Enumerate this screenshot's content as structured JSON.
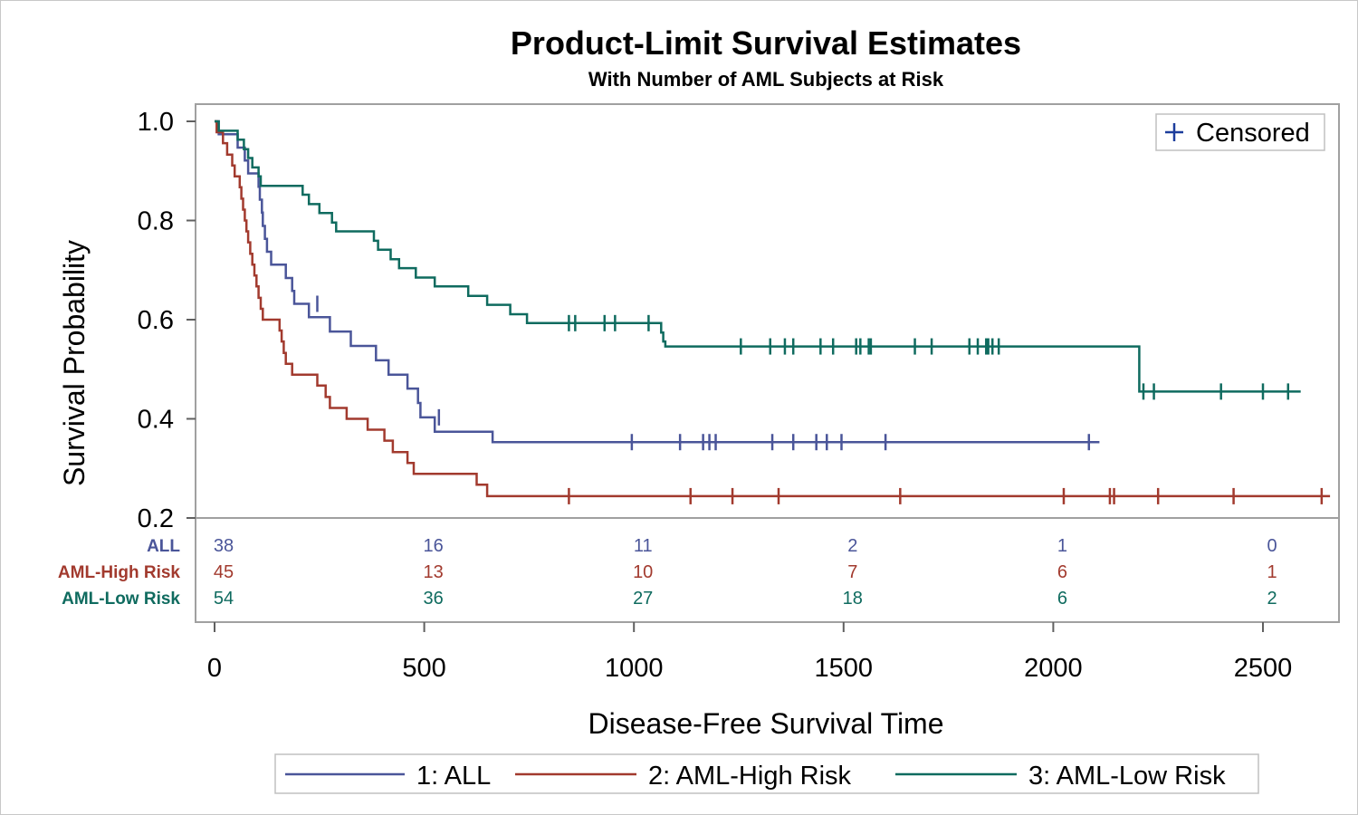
{
  "chart_data": {
    "type": "line",
    "title": "Product-Limit Survival Estimates",
    "subtitle": "With Number of AML Subjects at Risk",
    "xlabel": "Disease-Free Survival Time",
    "ylabel": "Survival Probability",
    "xlim": [
      -40,
      2660
    ],
    "ylim": [
      0.2,
      1.0
    ],
    "x_ticks": [
      0,
      500,
      1000,
      1500,
      2000,
      2500
    ],
    "x_tick_labels": [
      "0",
      "500",
      "1000",
      "1500",
      "2000",
      "2500"
    ],
    "y_ticks": [
      0.2,
      0.4,
      0.6,
      0.8,
      1.0
    ],
    "y_tick_labels": [
      "0.2",
      "0.4",
      "0.6",
      "0.8",
      "1.0"
    ],
    "censor_legend": "Censored",
    "censor_legend_position": "top-right",
    "legend_position": "bottom",
    "series": [
      {
        "name": "1: ALL",
        "color": "#4a5599",
        "steps": [
          [
            0,
            1.0
          ],
          [
            10,
            0.974
          ],
          [
            55,
            0.947
          ],
          [
            72,
            0.921
          ],
          [
            80,
            0.895
          ],
          [
            105,
            0.868
          ],
          [
            108,
            0.842
          ],
          [
            113,
            0.816
          ],
          [
            115,
            0.789
          ],
          [
            120,
            0.763
          ],
          [
            125,
            0.737
          ],
          [
            135,
            0.711
          ],
          [
            170,
            0.684
          ],
          [
            185,
            0.658
          ],
          [
            190,
            0.632
          ],
          [
            225,
            0.605
          ],
          [
            275,
            0.576
          ],
          [
            325,
            0.547
          ],
          [
            385,
            0.518
          ],
          [
            415,
            0.489
          ],
          [
            460,
            0.461
          ],
          [
            485,
            0.432
          ],
          [
            491,
            0.403
          ],
          [
            525,
            0.374
          ],
          [
            550,
            0.374
          ],
          [
            663,
            0.353
          ],
          [
            2110,
            0.353
          ]
        ],
        "censored": [
          [
            245,
            0.632
          ],
          [
            535,
            0.403
          ],
          [
            995,
            0.353
          ],
          [
            1110,
            0.353
          ],
          [
            1165,
            0.353
          ],
          [
            1180,
            0.353
          ],
          [
            1195,
            0.353
          ],
          [
            1330,
            0.353
          ],
          [
            1380,
            0.353
          ],
          [
            1435,
            0.353
          ],
          [
            1460,
            0.353
          ],
          [
            1495,
            0.353
          ],
          [
            1600,
            0.353
          ],
          [
            2085,
            0.353
          ]
        ]
      },
      {
        "name": "2: AML-High Risk",
        "color": "#a23a2e",
        "steps": [
          [
            0,
            1.0
          ],
          [
            5,
            0.978
          ],
          [
            20,
            0.956
          ],
          [
            30,
            0.933
          ],
          [
            42,
            0.911
          ],
          [
            48,
            0.889
          ],
          [
            60,
            0.867
          ],
          [
            64,
            0.844
          ],
          [
            68,
            0.822
          ],
          [
            72,
            0.8
          ],
          [
            76,
            0.778
          ],
          [
            80,
            0.756
          ],
          [
            85,
            0.733
          ],
          [
            90,
            0.711
          ],
          [
            95,
            0.689
          ],
          [
            100,
            0.667
          ],
          [
            105,
            0.644
          ],
          [
            110,
            0.622
          ],
          [
            115,
            0.6
          ],
          [
            155,
            0.578
          ],
          [
            160,
            0.556
          ],
          [
            165,
            0.533
          ],
          [
            170,
            0.511
          ],
          [
            185,
            0.489
          ],
          [
            245,
            0.467
          ],
          [
            265,
            0.444
          ],
          [
            275,
            0.422
          ],
          [
            315,
            0.4
          ],
          [
            365,
            0.378
          ],
          [
            405,
            0.356
          ],
          [
            425,
            0.333
          ],
          [
            460,
            0.311
          ],
          [
            475,
            0.289
          ],
          [
            625,
            0.267
          ],
          [
            650,
            0.244
          ],
          [
            2660,
            0.244
          ]
        ],
        "censored": [
          [
            845,
            0.244
          ],
          [
            1135,
            0.244
          ],
          [
            1235,
            0.244
          ],
          [
            1345,
            0.244
          ],
          [
            1635,
            0.244
          ],
          [
            2025,
            0.244
          ],
          [
            2135,
            0.244
          ],
          [
            2145,
            0.244
          ],
          [
            2250,
            0.244
          ],
          [
            2430,
            0.244
          ],
          [
            2640,
            0.244
          ]
        ]
      },
      {
        "name": "3: AML-Low Risk",
        "color": "#0f6b5f",
        "steps": [
          [
            0,
            1.0
          ],
          [
            10,
            0.981
          ],
          [
            55,
            0.963
          ],
          [
            70,
            0.944
          ],
          [
            80,
            0.926
          ],
          [
            90,
            0.907
          ],
          [
            105,
            0.889
          ],
          [
            110,
            0.87
          ],
          [
            210,
            0.852
          ],
          [
            225,
            0.833
          ],
          [
            250,
            0.815
          ],
          [
            280,
            0.796
          ],
          [
            290,
            0.778
          ],
          [
            380,
            0.759
          ],
          [
            390,
            0.741
          ],
          [
            420,
            0.722
          ],
          [
            440,
            0.704
          ],
          [
            480,
            0.685
          ],
          [
            525,
            0.667
          ],
          [
            605,
            0.648
          ],
          [
            650,
            0.63
          ],
          [
            705,
            0.611
          ],
          [
            745,
            0.593
          ],
          [
            1065,
            0.574
          ],
          [
            1070,
            0.556
          ],
          [
            1075,
            0.546
          ],
          [
            2200,
            0.546
          ],
          [
            2205,
            0.455
          ],
          [
            2590,
            0.455
          ]
        ],
        "censored": [
          [
            845,
            0.593
          ],
          [
            860,
            0.593
          ],
          [
            930,
            0.593
          ],
          [
            955,
            0.593
          ],
          [
            1035,
            0.593
          ],
          [
            1255,
            0.546
          ],
          [
            1325,
            0.546
          ],
          [
            1360,
            0.546
          ],
          [
            1380,
            0.546
          ],
          [
            1445,
            0.546
          ],
          [
            1475,
            0.546
          ],
          [
            1530,
            0.546
          ],
          [
            1540,
            0.546
          ],
          [
            1560,
            0.546
          ],
          [
            1565,
            0.546
          ],
          [
            1670,
            0.546
          ],
          [
            1710,
            0.546
          ],
          [
            1800,
            0.546
          ],
          [
            1820,
            0.546
          ],
          [
            1840,
            0.546
          ],
          [
            1845,
            0.546
          ],
          [
            1855,
            0.546
          ],
          [
            1870,
            0.546
          ],
          [
            2215,
            0.455
          ],
          [
            2240,
            0.455
          ],
          [
            2400,
            0.455
          ],
          [
            2500,
            0.455
          ],
          [
            2560,
            0.455
          ]
        ]
      }
    ],
    "risk_table": {
      "times": [
        0,
        500,
        1000,
        1500,
        2000,
        2500
      ],
      "rows": [
        {
          "label": "ALL",
          "color": "#4a5599",
          "values": [
            "38",
            "16",
            "11",
            "2",
            "1",
            "0"
          ]
        },
        {
          "label": "AML-High Risk",
          "color": "#a23a2e",
          "values": [
            "45",
            "13",
            "10",
            "7",
            "6",
            "1"
          ]
        },
        {
          "label": "AML-Low Risk",
          "color": "#0f6b5f",
          "values": [
            "54",
            "36",
            "27",
            "18",
            "6",
            "2"
          ]
        }
      ]
    },
    "censor_marker_color": "#1c3d9c"
  }
}
